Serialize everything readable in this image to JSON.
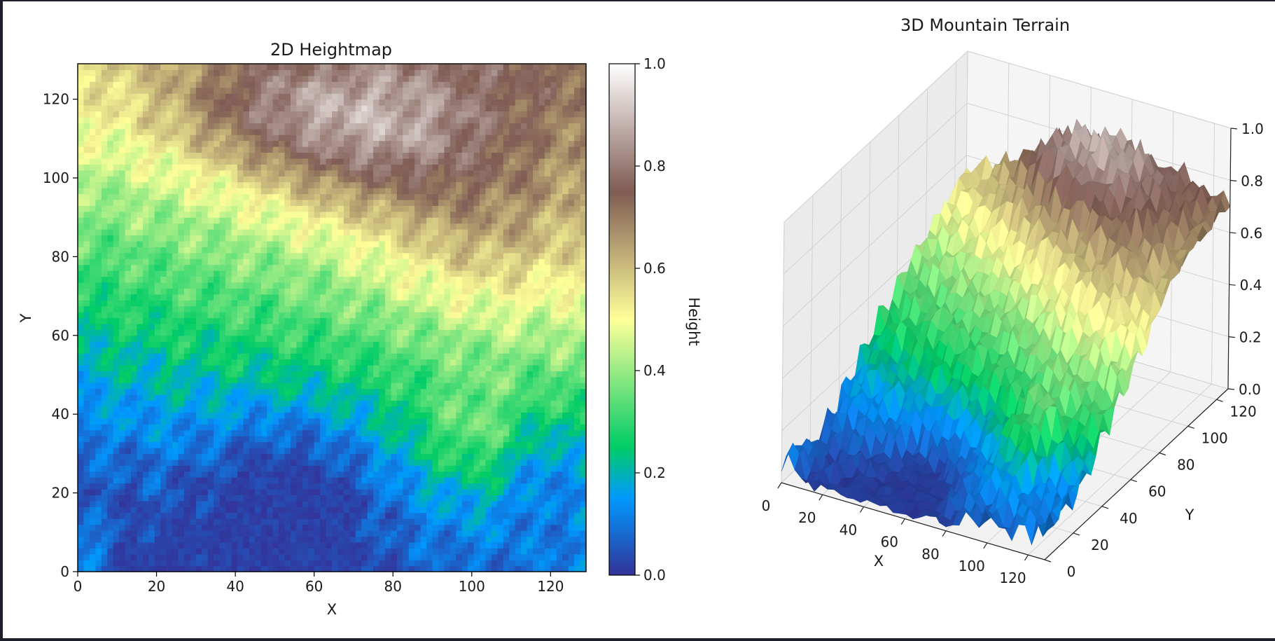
{
  "figure": {
    "background": "#ffffff",
    "window_background": "#1e1f2b"
  },
  "chart_data": [
    {
      "type": "heatmap",
      "title": "2D Heightmap",
      "xlabel": "X",
      "ylabel": "Y",
      "xlim": [
        0,
        129
      ],
      "ylim": [
        0,
        129
      ],
      "x_ticks": [
        0,
        20,
        40,
        60,
        80,
        100,
        120
      ],
      "y_ticks": [
        0,
        20,
        40,
        60,
        80,
        100,
        120
      ],
      "colormap": "terrain",
      "grid_resolution": 129,
      "colorbar": {
        "label": "Height",
        "range": [
          0.0,
          1.0
        ],
        "ticks": [
          "0.0",
          "0.2",
          "0.4",
          "0.6",
          "0.8",
          "1.0"
        ]
      },
      "height_field_description": "Low basin (0.05-0.2) around x 40-80, y 10-45 and x 110-128, y 10-40; green plain (0.25-0.4) across west and middle; yellow ridge band (0.45-0.55) running from x 0, y 100 to x 128, y 40; brown highlands (0.6-0.8) in the north; white peaks (0.85-0.95) near x 70-85, y 100-125."
    },
    {
      "type": "surface3d",
      "title": "3D Mountain Terrain",
      "xlabel": "X",
      "ylabel": "Y",
      "zlabel": "",
      "x_ticks": [
        "0",
        "20",
        "40",
        "60",
        "80",
        "100",
        "120"
      ],
      "y_ticks": [
        "0",
        "20",
        "40",
        "60",
        "80",
        "100",
        "120"
      ],
      "z_ticks": [
        "0.0",
        "0.2",
        "0.4",
        "0.6",
        "0.8",
        "1.0"
      ],
      "zlim": [
        0.0,
        1.0
      ],
      "colormap": "terrain",
      "source": "same height field as the 2D heightmap"
    }
  ]
}
